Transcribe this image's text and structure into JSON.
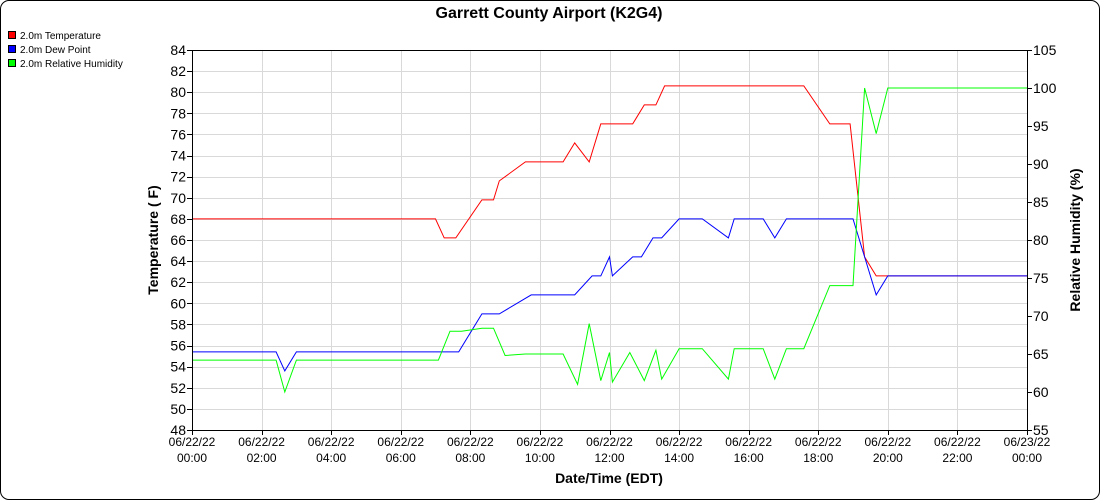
{
  "chart_data": {
    "type": "line",
    "title": "Garrett County Airport (K2G4)",
    "xlabel": "Date/Time (EDT)",
    "ylabel_left": "Temperature ( F)",
    "ylabel_right": "Relative Humidity (%)",
    "ylim_left": [
      48,
      84
    ],
    "ylim_right": [
      55,
      105
    ],
    "grid": true,
    "legend_position": "top-left",
    "x_ticks": [
      {
        "date": "06/22/22",
        "time": "00:00"
      },
      {
        "date": "06/22/22",
        "time": "02:00"
      },
      {
        "date": "06/22/22",
        "time": "04:00"
      },
      {
        "date": "06/22/22",
        "time": "06:00"
      },
      {
        "date": "06/22/22",
        "time": "08:00"
      },
      {
        "date": "06/22/22",
        "time": "10:00"
      },
      {
        "date": "06/22/22",
        "time": "12:00"
      },
      {
        "date": "06/22/22",
        "time": "14:00"
      },
      {
        "date": "06/22/22",
        "time": "16:00"
      },
      {
        "date": "06/22/22",
        "time": "18:00"
      },
      {
        "date": "06/22/22",
        "time": "20:00"
      },
      {
        "date": "06/22/22",
        "time": "22:00"
      },
      {
        "date": "06/23/22",
        "time": "00:00"
      }
    ],
    "y_ticks_left": [
      "48",
      "50",
      "52",
      "54",
      "56",
      "58",
      "60",
      "62",
      "64",
      "66",
      "68",
      "70",
      "72",
      "74",
      "76",
      "78",
      "80",
      "82",
      "84"
    ],
    "y_ticks_right": [
      "55",
      "60",
      "65",
      "70",
      "75",
      "80",
      "85",
      "90",
      "95",
      "100",
      "105"
    ],
    "series": [
      {
        "name": "2.0m Temperature",
        "color": "#ff0000",
        "axis": "left",
        "points": [
          [
            "06/22/22 00:00",
            68.0
          ],
          [
            "06/22/22 07:00",
            68.0
          ],
          [
            "06/22/22 07:15",
            66.2
          ],
          [
            "06/22/22 07:35",
            66.2
          ],
          [
            "06/22/22 08:20",
            69.8
          ],
          [
            "06/22/22 08:40",
            69.8
          ],
          [
            "06/22/22 08:50",
            71.6
          ],
          [
            "06/22/22 09:35",
            73.4
          ],
          [
            "06/22/22 10:40",
            73.4
          ],
          [
            "06/22/22 11:00",
            75.2
          ],
          [
            "06/22/22 11:25",
            73.4
          ],
          [
            "06/22/22 11:45",
            77.0
          ],
          [
            "06/22/22 12:40",
            77.0
          ],
          [
            "06/22/22 13:00",
            78.8
          ],
          [
            "06/22/22 13:20",
            78.8
          ],
          [
            "06/22/22 13:35",
            80.6
          ],
          [
            "06/22/22 17:35",
            80.6
          ],
          [
            "06/22/22 18:20",
            77.0
          ],
          [
            "06/22/22 18:55",
            77.0
          ],
          [
            "06/22/22 19:20",
            64.4
          ],
          [
            "06/22/22 19:40",
            62.6
          ],
          [
            "06/23/22 00:00",
            62.6
          ]
        ]
      },
      {
        "name": "2.0m Dew Point",
        "color": "#0000ff",
        "axis": "left",
        "points": [
          [
            "06/22/22 00:00",
            55.4
          ],
          [
            "06/22/22 02:25",
            55.4
          ],
          [
            "06/22/22 02:40",
            53.6
          ],
          [
            "06/22/22 03:00",
            55.4
          ],
          [
            "06/22/22 07:40",
            55.4
          ],
          [
            "06/22/22 08:20",
            59.0
          ],
          [
            "06/22/22 08:50",
            59.0
          ],
          [
            "06/22/22 09:45",
            60.8
          ],
          [
            "06/22/22 11:00",
            60.8
          ],
          [
            "06/22/22 11:30",
            62.6
          ],
          [
            "06/22/22 11:45",
            62.6
          ],
          [
            "06/22/22 12:00",
            64.4
          ],
          [
            "06/22/22 12:05",
            62.6
          ],
          [
            "06/22/22 12:40",
            64.4
          ],
          [
            "06/22/22 12:55",
            64.4
          ],
          [
            "06/22/22 13:15",
            66.2
          ],
          [
            "06/22/22 13:30",
            66.2
          ],
          [
            "06/22/22 14:00",
            68.0
          ],
          [
            "06/22/22 14:40",
            68.0
          ],
          [
            "06/22/22 15:25",
            66.2
          ],
          [
            "06/22/22 15:35",
            68.0
          ],
          [
            "06/22/22 16:25",
            68.0
          ],
          [
            "06/22/22 16:45",
            66.2
          ],
          [
            "06/22/22 17:05",
            68.0
          ],
          [
            "06/22/22 19:00",
            68.0
          ],
          [
            "06/22/22 19:20",
            64.4
          ],
          [
            "06/22/22 19:40",
            60.8
          ],
          [
            "06/22/22 20:00",
            62.6
          ],
          [
            "06/23/22 00:00",
            62.6
          ]
        ]
      },
      {
        "name": "2.0m Relative Humidity",
        "color": "#00ff00",
        "axis": "right",
        "points": [
          [
            "06/22/22 00:00",
            64.2
          ],
          [
            "06/22/22 02:25",
            64.2
          ],
          [
            "06/22/22 02:40",
            60.0
          ],
          [
            "06/22/22 03:00",
            64.2
          ],
          [
            "06/22/22 07:05",
            64.2
          ],
          [
            "06/22/22 07:25",
            68.0
          ],
          [
            "06/22/22 07:45",
            68.0
          ],
          [
            "06/22/22 08:20",
            68.4
          ],
          [
            "06/22/22 08:40",
            68.4
          ],
          [
            "06/22/22 09:00",
            64.8
          ],
          [
            "06/22/22 09:35",
            65.0
          ],
          [
            "06/22/22 10:40",
            65.0
          ],
          [
            "06/22/22 11:05",
            61.0
          ],
          [
            "06/22/22 11:25",
            69.0
          ],
          [
            "06/22/22 11:45",
            61.5
          ],
          [
            "06/22/22 12:00",
            65.2
          ],
          [
            "06/22/22 12:05",
            61.3
          ],
          [
            "06/22/22 12:35",
            65.2
          ],
          [
            "06/22/22 13:00",
            61.5
          ],
          [
            "06/22/22 13:20",
            65.5
          ],
          [
            "06/22/22 13:30",
            61.7
          ],
          [
            "06/22/22 14:00",
            65.7
          ],
          [
            "06/22/22 14:40",
            65.7
          ],
          [
            "06/22/22 15:25",
            61.7
          ],
          [
            "06/22/22 15:35",
            65.7
          ],
          [
            "06/22/22 16:25",
            65.7
          ],
          [
            "06/22/22 16:45",
            61.7
          ],
          [
            "06/22/22 17:05",
            65.7
          ],
          [
            "06/22/22 17:35",
            65.7
          ],
          [
            "06/22/22 18:20",
            74.0
          ],
          [
            "06/22/22 19:00",
            74.0
          ],
          [
            "06/22/22 19:20",
            100.0
          ],
          [
            "06/22/22 19:40",
            94.0
          ],
          [
            "06/22/22 20:00",
            100.0
          ],
          [
            "06/23/22 00:00",
            100.0
          ]
        ]
      }
    ]
  }
}
